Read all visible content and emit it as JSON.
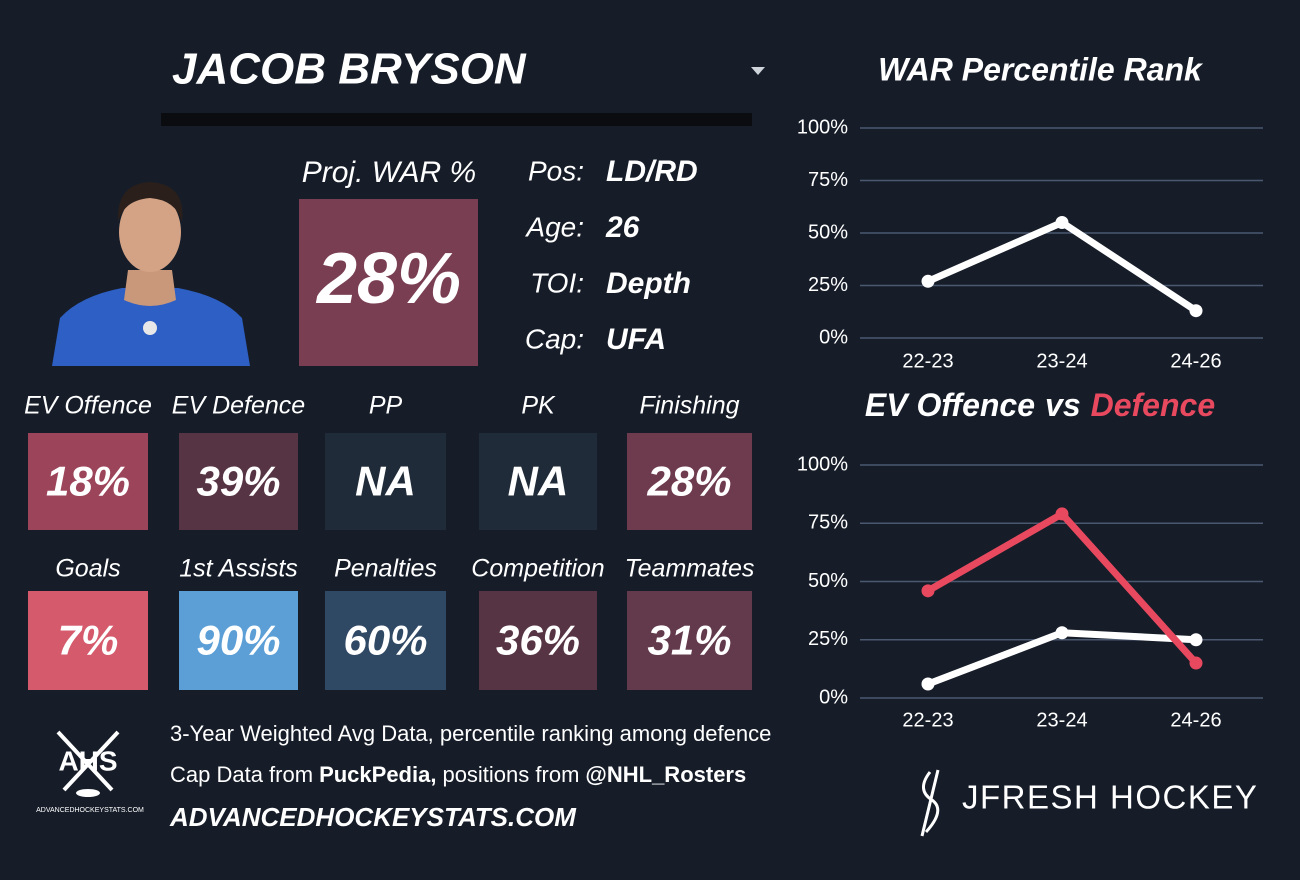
{
  "header": {
    "name": "JACOB BRYSON"
  },
  "proj_war": {
    "label": "Proj. WAR %",
    "value": "28%",
    "color": "#7a3e52"
  },
  "info": [
    {
      "label": "Pos:",
      "value": "LD/RD"
    },
    {
      "label": "Age:",
      "value": "26"
    },
    {
      "label": "TOI:",
      "value": "Depth"
    },
    {
      "label": "Cap:",
      "value": "UFA"
    }
  ],
  "tiles": [
    {
      "label": "EV Offence",
      "value": "18%",
      "color": "#9c4459"
    },
    {
      "label": "EV Defence",
      "value": "39%",
      "color": "#573444"
    },
    {
      "label": "PP",
      "value": "NA",
      "color": "#202b39"
    },
    {
      "label": "PK",
      "value": "NA",
      "color": "#202b39"
    },
    {
      "label": "Finishing",
      "value": "28%",
      "color": "#6e3a4e"
    },
    {
      "label": "Goals",
      "value": "7%",
      "color": "#d45a6c"
    },
    {
      "label": "1st Assists",
      "value": "90%",
      "color": "#5b9fd6"
    },
    {
      "label": "Penalties",
      "value": "60%",
      "color": "#2f4863"
    },
    {
      "label": "Competition",
      "value": "36%",
      "color": "#573444"
    },
    {
      "label": "Teammates",
      "value": "31%",
      "color": "#633a4c"
    }
  ],
  "footer": {
    "note": "3-Year Weighted Avg Data, percentile ranking among defence",
    "cap_line": [
      "Cap Data from",
      "PuckPedia,",
      "positions from",
      "@NHL_Rosters"
    ],
    "site": "ADVANCEDHOCKEYSTATS.COM",
    "logo": "AHS",
    "logo_site": "ADVANCEDHOCKEYSTATS.COM",
    "brand": "JFRESH HOCKEY"
  },
  "chart_data": [
    {
      "type": "line",
      "title": "WAR Percentile Rank",
      "categories": [
        "22-23",
        "23-24",
        "24-26"
      ],
      "series": [
        {
          "color": "#ffffff",
          "values": [
            27,
            55,
            13
          ]
        }
      ],
      "ylim": [
        0,
        100
      ],
      "yticks": [
        {
          "value": 0,
          "label": "0%"
        },
        {
          "value": 25,
          "label": "25%"
        },
        {
          "value": 50,
          "label": "50%"
        },
        {
          "value": 75,
          "label": "75%"
        },
        {
          "value": 100,
          "label": "100%"
        }
      ],
      "grid": true
    },
    {
      "type": "line",
      "title_joiner": "vs",
      "categories": [
        "22-23",
        "23-24",
        "24-26"
      ],
      "series": [
        {
          "name": "EV Offence",
          "color": "#ffffff",
          "values": [
            6,
            28,
            25
          ]
        },
        {
          "name": "Defence",
          "color": "#e8495f",
          "values": [
            46,
            79,
            15
          ]
        }
      ],
      "ylim": [
        0,
        100
      ],
      "yticks": [
        {
          "value": 0,
          "label": "0%"
        },
        {
          "value": 25,
          "label": "25%"
        },
        {
          "value": 50,
          "label": "50%"
        },
        {
          "value": 75,
          "label": "75%"
        },
        {
          "value": 100,
          "label": "100%"
        }
      ],
      "grid": true
    }
  ]
}
